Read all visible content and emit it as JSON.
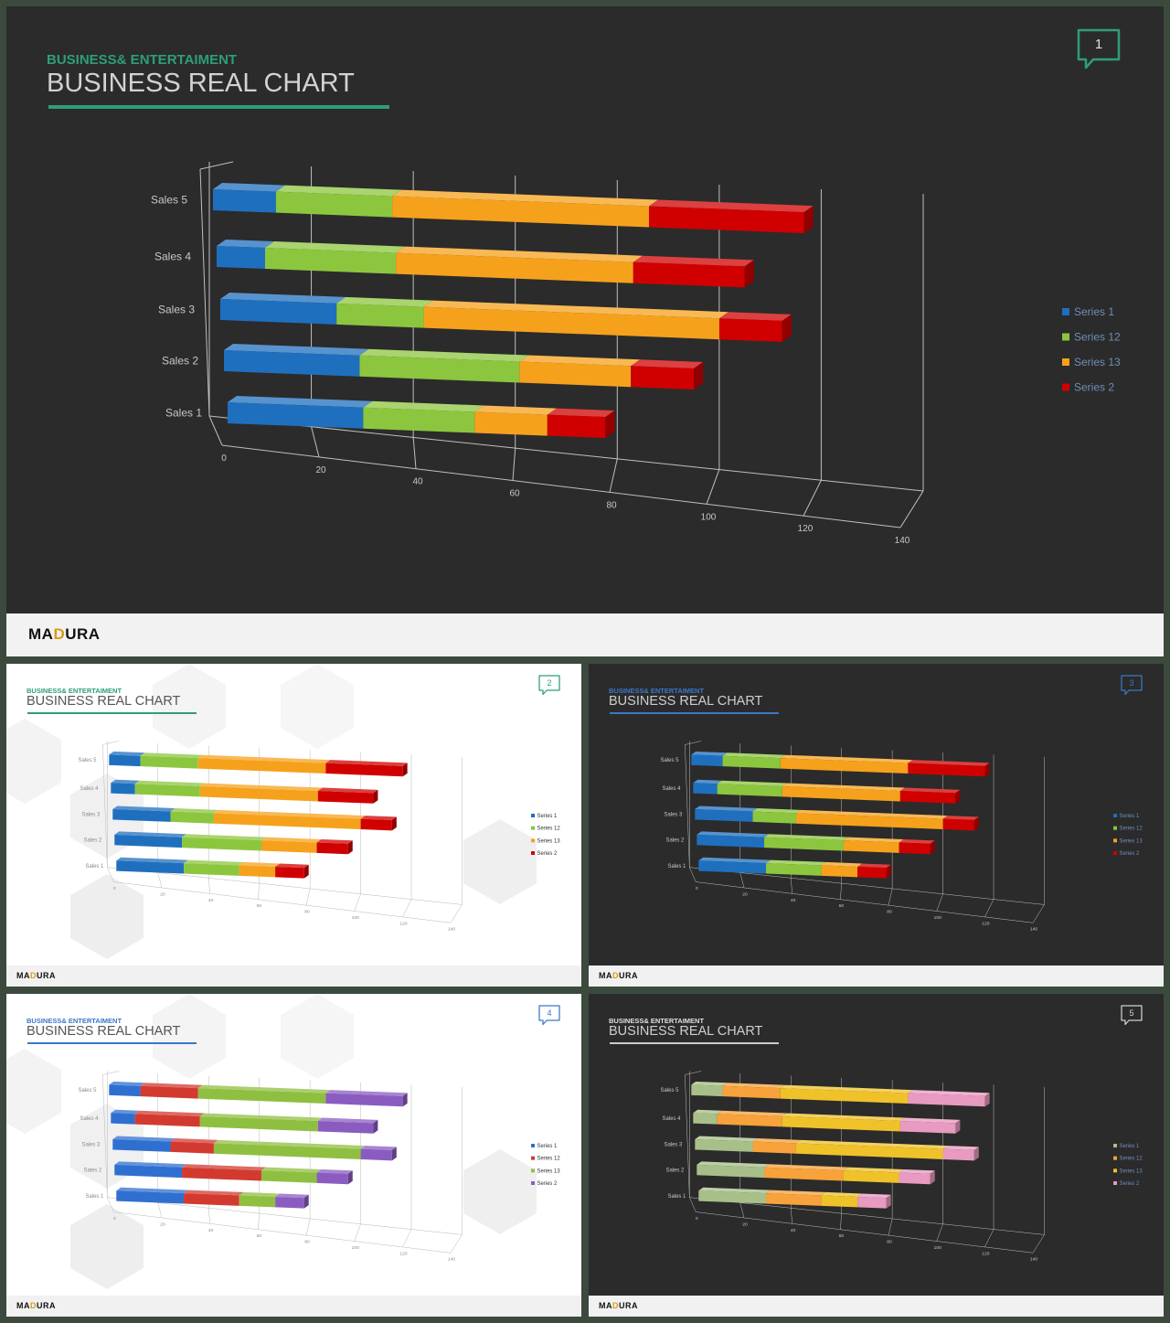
{
  "slides": [
    {
      "eyebrow": "BUSINESS& ENTERTAIMENT",
      "title": "BUSINESS REAL CHART",
      "page_number": "1",
      "brand": "MADURA",
      "theme": "dark",
      "accent": "#2e9e78",
      "palette": [
        "#1f6fbf",
        "#8cc63f",
        "#f6a11c",
        "#d00000"
      ]
    },
    {
      "eyebrow": "BUSINESS& ENTERTAIMENT",
      "title": "BUSINESS REAL CHART",
      "page_number": "2",
      "brand": "MADURA",
      "theme": "light",
      "accent": "#2e9e78",
      "palette": [
        "#1f6fbf",
        "#8cc63f",
        "#f6a11c",
        "#d00000"
      ]
    },
    {
      "eyebrow": "BUSINESS& ENTERTAIMENT",
      "title": "BUSINESS REAL CHART",
      "page_number": "3",
      "brand": "MADURA",
      "theme": "dark",
      "accent": "#3a78c8",
      "palette": [
        "#1f6fbf",
        "#8cc63f",
        "#f6a11c",
        "#d00000"
      ]
    },
    {
      "eyebrow": "BUSINESS& ENTERTAIMENT",
      "title": "BUSINESS REAL CHART",
      "page_number": "4",
      "brand": "MADURA",
      "theme": "light",
      "accent": "#3a78c8",
      "palette": [
        "#2f6fd0",
        "#d23a30",
        "#8fbf40",
        "#8a5cc0"
      ]
    },
    {
      "eyebrow": "BUSINESS& ENTERTAIMENT",
      "title": "BUSINESS REAL CHART",
      "page_number": "5",
      "brand": "MADURA",
      "theme": "dark",
      "accent": "#cccccc",
      "palette": [
        "#a8bf8a",
        "#f7a23a",
        "#efc22a",
        "#e89ac0"
      ]
    }
  ],
  "chart_data": {
    "type": "bar",
    "stacked": true,
    "orientation": "horizontal",
    "three_d": true,
    "categories": [
      "Sales 1",
      "Sales 2",
      "Sales 3",
      "Sales 4",
      "Sales 5"
    ],
    "series": [
      {
        "name": "Series 1",
        "values": [
          28,
          28,
          24,
          10,
          13
        ]
      },
      {
        "name": "Series 12",
        "values": [
          23,
          33,
          18,
          27,
          24
        ]
      },
      {
        "name": "Series 13",
        "values": [
          15,
          23,
          61,
          49,
          53
        ]
      },
      {
        "name": "Series 2",
        "values": [
          12,
          13,
          13,
          23,
          32
        ]
      }
    ],
    "xlim": [
      0,
      140
    ],
    "xticks": [
      "0",
      "20",
      "40",
      "60",
      "80",
      "100",
      "120",
      "140"
    ],
    "legend_position": "right"
  }
}
